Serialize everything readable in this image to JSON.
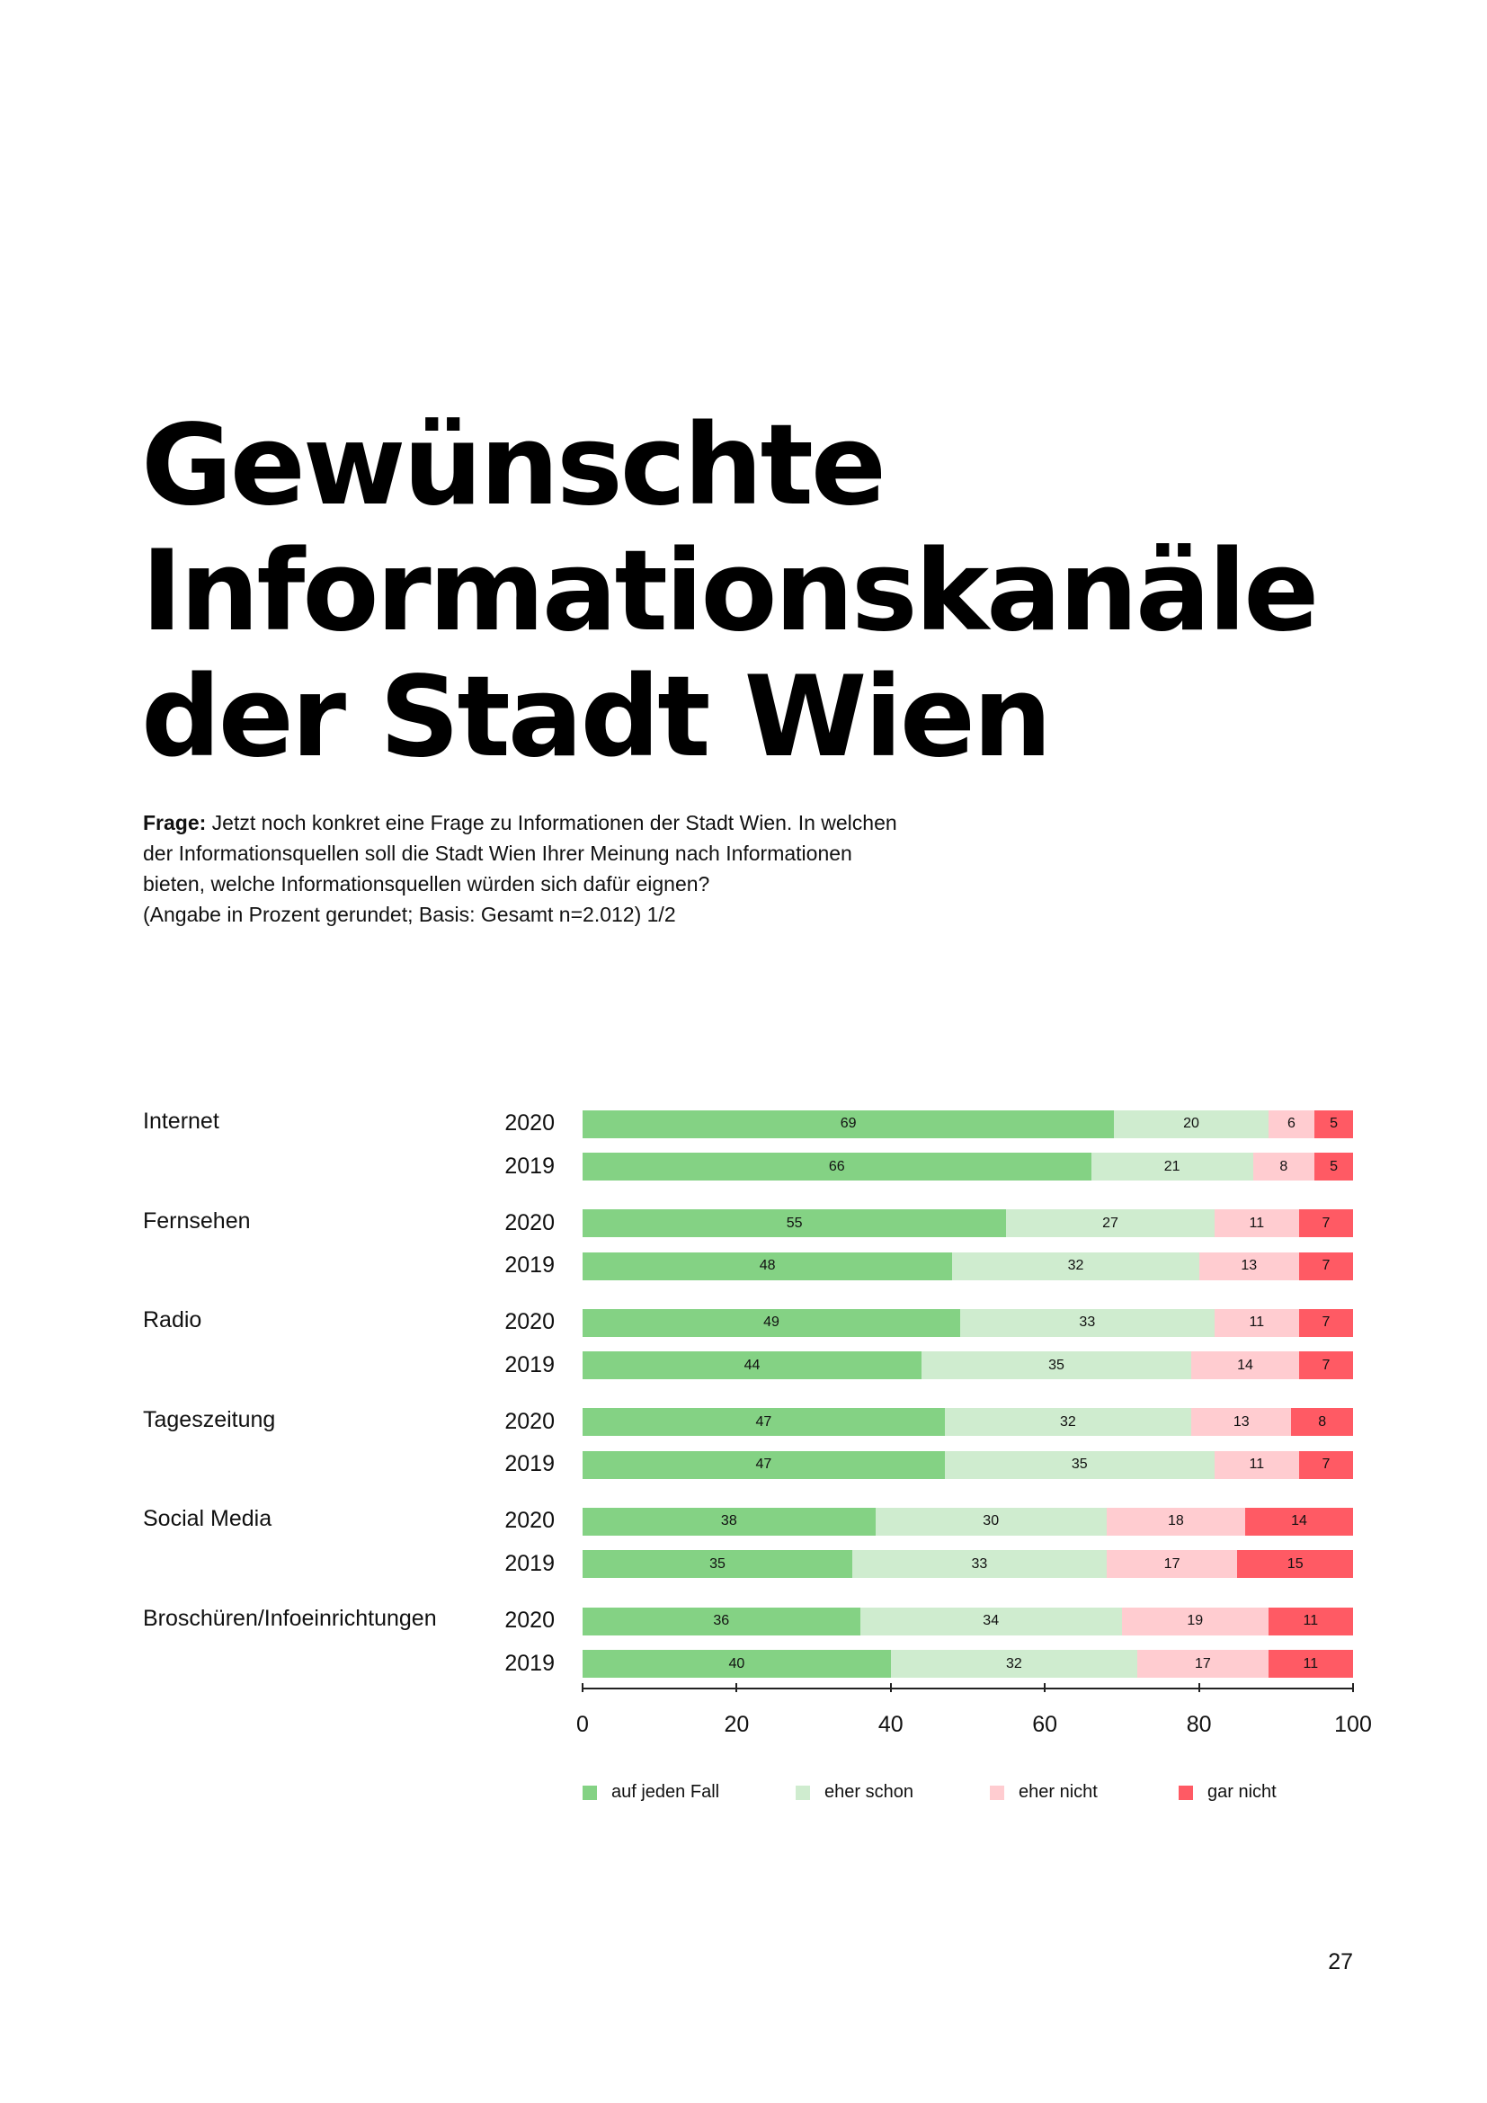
{
  "title": {
    "lines": [
      "Gewünschte",
      "Informationskanäle",
      "der Stadt Wien"
    ]
  },
  "question": {
    "label": "Frage:",
    "lines": [
      " Jetzt noch konkret eine Frage zu Informationen der Stadt Wien. In welchen",
      "der Informationsquellen soll die Stadt Wien Ihrer Meinung nach Informationen",
      "bieten, welche Informationsquellen würden sich dafür eignen?",
      "(Angabe in Prozent gerundet; Basis: Gesamt n=2.012) 1/2"
    ]
  },
  "page_number": "27",
  "chart_data": {
    "type": "bar",
    "orientation": "horizontal",
    "stacked": true,
    "xlim": [
      0,
      100
    ],
    "xticks": [
      "0",
      "20",
      "40",
      "60",
      "80",
      "100"
    ],
    "legend_position": "bottom",
    "series": [
      {
        "name": "auf jeden Fall",
        "color": "#84d284"
      },
      {
        "name": "eher schon",
        "color": "#cfeccf"
      },
      {
        "name": "eher nicht",
        "color": "#ffccd0"
      },
      {
        "name": "gar nicht",
        "color": "#ff5a64"
      }
    ],
    "groups": [
      {
        "category": "Internet",
        "rows": [
          {
            "year": "2020",
            "values": [
              69,
              20,
              6,
              5
            ]
          },
          {
            "year": "2019",
            "values": [
              66,
              21,
              8,
              5
            ]
          }
        ]
      },
      {
        "category": "Fernsehen",
        "rows": [
          {
            "year": "2020",
            "values": [
              55,
              27,
              11,
              7
            ]
          },
          {
            "year": "2019",
            "values": [
              48,
              32,
              13,
              7
            ]
          }
        ]
      },
      {
        "category": "Radio",
        "rows": [
          {
            "year": "2020",
            "values": [
              49,
              33,
              11,
              7
            ]
          },
          {
            "year": "2019",
            "values": [
              44,
              35,
              14,
              7
            ]
          }
        ]
      },
      {
        "category": "Tageszeitung",
        "rows": [
          {
            "year": "2020",
            "values": [
              47,
              32,
              13,
              8
            ]
          },
          {
            "year": "2019",
            "values": [
              47,
              35,
              11,
              7
            ]
          }
        ]
      },
      {
        "category": "Social Media",
        "rows": [
          {
            "year": "2020",
            "values": [
              38,
              30,
              18,
              14
            ]
          },
          {
            "year": "2019",
            "values": [
              35,
              33,
              17,
              15
            ]
          }
        ]
      },
      {
        "category": "Broschüren/Infoeinrichtungen",
        "rows": [
          {
            "year": "2020",
            "values": [
              36,
              34,
              19,
              11
            ]
          },
          {
            "year": "2019",
            "values": [
              40,
              32,
              17,
              11
            ]
          }
        ]
      }
    ]
  }
}
